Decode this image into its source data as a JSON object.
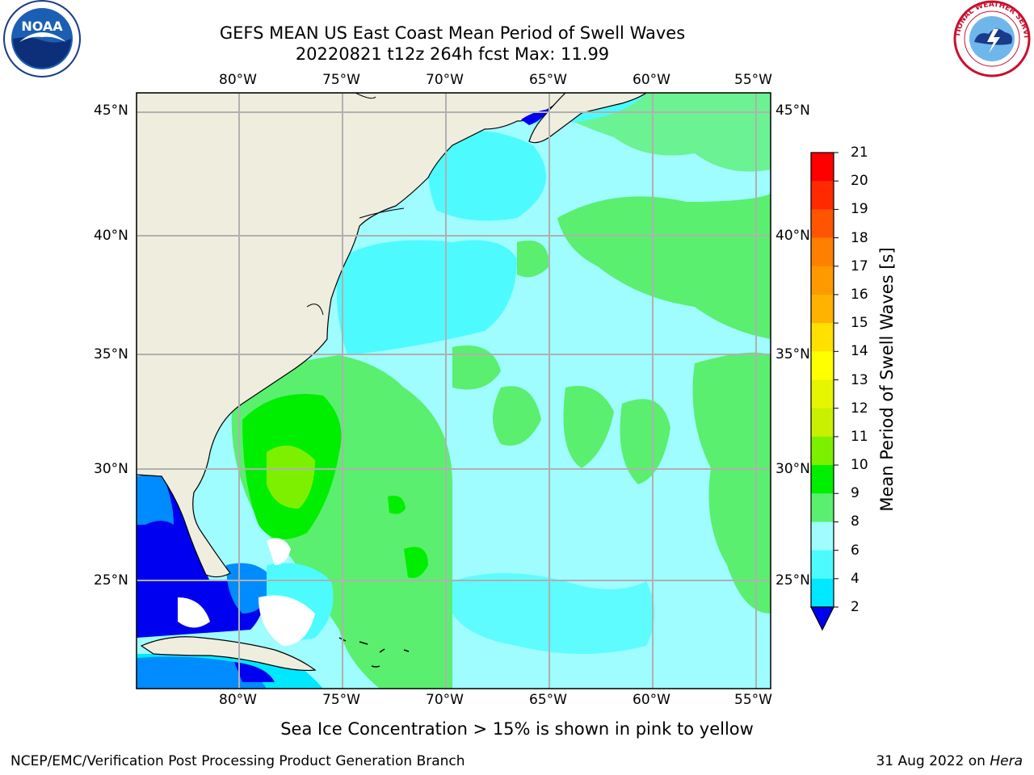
{
  "title_line1": "GEFS MEAN US East Coast Mean Period of Swell Waves",
  "title_line2": "20220821 t12z 264h fcst   Max: 11.99",
  "lon_labels": [
    "80°W",
    "75°W",
    "70°W",
    "65°W",
    "60°W",
    "55°W"
  ],
  "lat_labels": [
    "45°N",
    "40°N",
    "35°N",
    "30°N",
    "25°N"
  ],
  "colorbar": {
    "title": "Mean Period of Swell Waves [s]",
    "ticks": [
      "21",
      "20",
      "19",
      "18",
      "17",
      "16",
      "15",
      "14",
      "13",
      "12",
      "11",
      "10",
      "9",
      "8",
      "6",
      "4",
      "2"
    ],
    "colors": [
      "#ff0000",
      "#ff2a00",
      "#ff5500",
      "#ff7f00",
      "#ff9900",
      "#ffb300",
      "#ffe000",
      "#ffff00",
      "#e6f500",
      "#c8f000",
      "#7df000",
      "#00ee00",
      "#5aef6e",
      "#9ffcff",
      "#4dfbff",
      "#00e8ff",
      "#008cff"
    ],
    "under_color": "#0000f0"
  },
  "map": {
    "land_color": "#efedde",
    "region": "US East Coast, 85°W–55°W, 20°N–46°N",
    "max_value": "11.99"
  },
  "note": "Sea Ice Concentration > 15% is shown in pink to yellow",
  "footer_left": "NCEP/EMC/Verification Post Processing Product Generation Branch",
  "footer_right_date": "31 Aug 2022 on ",
  "footer_right_machine": "Hera",
  "logos": {
    "left": "noaa-logo",
    "left_text": "NOAA",
    "right": "nws-logo",
    "right_text": "NATIONAL WEATHER SERVICE"
  }
}
